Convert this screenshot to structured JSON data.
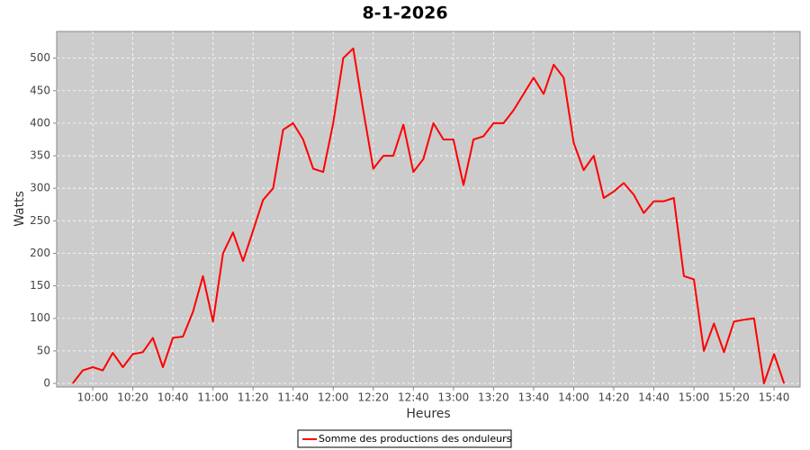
{
  "chart_data": {
    "type": "line",
    "title": "8-1-2026",
    "x_label": "Heures",
    "y_label": "Watts",
    "x": [
      "09:50",
      "09:55",
      "10:00",
      "10:05",
      "10:10",
      "10:15",
      "10:20",
      "10:25",
      "10:30",
      "10:35",
      "10:40",
      "10:45",
      "10:50",
      "10:55",
      "11:00",
      "11:05",
      "11:10",
      "11:15",
      "11:20",
      "11:25",
      "11:30",
      "11:35",
      "11:40",
      "11:45",
      "11:50",
      "11:55",
      "12:00",
      "12:05",
      "12:10",
      "12:15",
      "12:20",
      "12:25",
      "12:30",
      "12:35",
      "12:40",
      "12:45",
      "12:50",
      "12:55",
      "13:00",
      "13:05",
      "13:10",
      "13:15",
      "13:20",
      "13:25",
      "13:30",
      "13:35",
      "13:40",
      "13:45",
      "13:50",
      "13:55",
      "14:00",
      "14:05",
      "14:10",
      "14:15",
      "14:20",
      "14:25",
      "14:30",
      "14:35",
      "14:40",
      "14:45",
      "14:50",
      "14:55",
      "15:00",
      "15:05",
      "15:10",
      "15:15",
      "15:20",
      "15:25",
      "15:30",
      "15:35",
      "15:40",
      "15:45"
    ],
    "series": [
      {
        "name": "Somme des productions des onduleurs",
        "color": "#ff0000",
        "values": [
          0,
          20,
          25,
          20,
          47,
          25,
          45,
          48,
          70,
          25,
          70,
          72,
          110,
          165,
          95,
          200,
          232,
          188,
          235,
          282,
          300,
          390,
          400,
          375,
          330,
          325,
          400,
          500,
          515,
          420,
          330,
          350,
          350,
          398,
          325,
          345,
          400,
          375,
          375,
          305,
          375,
          380,
          400,
          400,
          420,
          445,
          470,
          445,
          490,
          470,
          370,
          328,
          350,
          285,
          295,
          308,
          290,
          262,
          280,
          280,
          285,
          165,
          160,
          50,
          92,
          48,
          95,
          98,
          100,
          0,
          45,
          0
        ]
      }
    ],
    "xlim": [
      "09:42",
      "15:53"
    ],
    "xticks": [
      "10:00",
      "10:20",
      "10:40",
      "11:00",
      "11:20",
      "11:40",
      "12:00",
      "12:20",
      "12:40",
      "13:00",
      "13:20",
      "13:40",
      "14:00",
      "14:20",
      "14:40",
      "15:00",
      "15:20",
      "15:40"
    ],
    "ylim": [
      -5.5,
      541
    ],
    "yticks": [
      0,
      50,
      100,
      150,
      200,
      250,
      300,
      350,
      400,
      450,
      500
    ],
    "grid": true,
    "legend": "bottom"
  }
}
